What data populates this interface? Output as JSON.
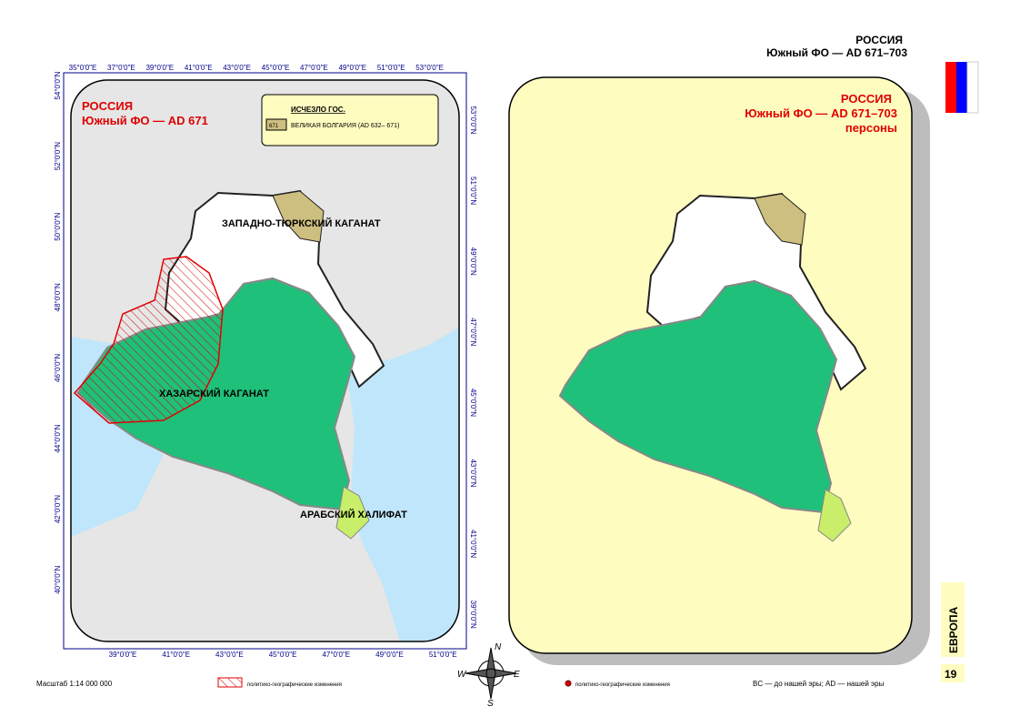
{
  "header": {
    "country": "РОССИЯ",
    "subtitle": "Южный ФО —  AD 671–703"
  },
  "left_map": {
    "title": "РОССИЯ",
    "subtitle": "Южный ФО —  AD 671",
    "legend": {
      "heading": "ИСЧЕЗЛО ГОС.",
      "swatch": "671",
      "item": "ВЕЛИКАЯ БОЛГАРИЯ (AD 632– 671)"
    },
    "top_ticks": [
      "35°0'0\"E",
      "37°0'0\"E",
      "39°0'0\"E",
      "41°0'0\"E",
      "43°0'0\"E",
      "45°0'0\"E",
      "47°0'0\"E",
      "49°0'0\"E",
      "51°0'0\"E",
      "53°0'0\"E"
    ],
    "bottom_ticks": [
      "39°0'0\"E",
      "41°0'0\"E",
      "43°0'0\"E",
      "45°0'0\"E",
      "47°0'0\"E",
      "49°0'0\"E",
      "51°0'0\"E"
    ],
    "left_ticks": [
      "54°0'0\"N",
      "52°0'0\"N",
      "50°0'0\"N",
      "48°0'0\"N",
      "46°0'0\"N",
      "44°0'0\"N",
      "42°0'0\"N",
      "40°0'0\"N"
    ],
    "right_ticks": [
      "53°0'0\"N",
      "51°0'0\"N",
      "49°0'0\"N",
      "47°0'0\"N",
      "45°0'0\"N",
      "43°0'0\"N",
      "41°0'0\"N",
      "39°0'0\"N"
    ],
    "labels": [
      "ЗАПАДНО-ТЮРКСКИЙ КАГАНАТ",
      "ХАЗАРСКИЙ КАГАНАТ",
      "АРАБСКИЙ ХАЛИФАТ"
    ]
  },
  "right_map": {
    "title": "РОССИЯ",
    "subtitle": "Южный ФО —  AD 671–703",
    "note": "персоны"
  },
  "compass": [
    "N",
    "E",
    "S",
    "W"
  ],
  "footer": {
    "scale": "Масштаб 1:14 000 000",
    "legend_left": "политико-географические изменения",
    "legend_right": "политико-географические изменения",
    "abbrev": "BC — до нашей эры; AD — нашей эры",
    "section": "ЕВРОПА",
    "page": "19"
  }
}
